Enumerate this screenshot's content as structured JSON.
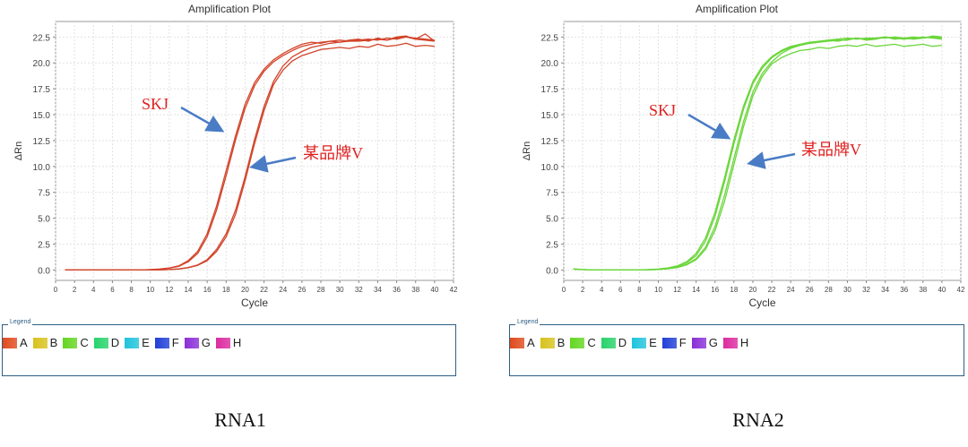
{
  "charts": [
    {
      "panel": "left",
      "caption": "RNA1",
      "legend_title": "Legend",
      "legend": [
        {
          "label": "A",
          "color": "#e04a1c"
        },
        {
          "label": "B",
          "color": "#d8c21c"
        },
        {
          "label": "C",
          "color": "#63d620"
        },
        {
          "label": "D",
          "color": "#27d36a"
        },
        {
          "label": "E",
          "color": "#1ec3dc"
        },
        {
          "label": "F",
          "color": "#1f3fd6"
        },
        {
          "label": "G",
          "color": "#8a2fd8"
        },
        {
          "label": "H",
          "color": "#dc2aa0"
        }
      ],
      "annotations": [
        {
          "text": "SKJ",
          "color": "#e02020"
        },
        {
          "text": "某品牌V",
          "color": "#e02020"
        }
      ]
    },
    {
      "panel": "right",
      "caption": "RNA2",
      "legend_title": "Legend",
      "legend": [
        {
          "label": "A",
          "color": "#e04a1c"
        },
        {
          "label": "B",
          "color": "#d8c21c"
        },
        {
          "label": "C",
          "color": "#63d620"
        },
        {
          "label": "D",
          "color": "#27d36a"
        },
        {
          "label": "E",
          "color": "#1ec3dc"
        },
        {
          "label": "F",
          "color": "#1f3fd6"
        },
        {
          "label": "G",
          "color": "#8a2fd8"
        },
        {
          "label": "H",
          "color": "#dc2aa0"
        }
      ],
      "annotations": [
        {
          "text": "SKJ",
          "color": "#e02020"
        },
        {
          "text": "某品牌V",
          "color": "#e02020"
        }
      ]
    }
  ],
  "chart_data": [
    {
      "type": "line",
      "title": "Amplification Plot",
      "xlabel": "Cycle",
      "ylabel": "ΔRn",
      "xlim": [
        0,
        42
      ],
      "ylim": [
        -1,
        24
      ],
      "xticks": [
        0,
        2,
        4,
        6,
        8,
        10,
        12,
        14,
        16,
        18,
        20,
        22,
        24,
        26,
        28,
        30,
        32,
        34,
        36,
        38,
        40,
        42
      ],
      "yticks": [
        0.0,
        2.5,
        5.0,
        7.5,
        10.0,
        12.5,
        15.0,
        17.5,
        20.0,
        22.5
      ],
      "ytick_labels": [
        "0.0",
        "2.5",
        "5.0",
        "7.5",
        "10.0",
        "12.5",
        "15.0",
        "17.5",
        "20.0",
        "22.5"
      ],
      "grid": true,
      "line_color": "#d2442a",
      "series": [
        {
          "values": [
            0,
            0,
            0,
            0,
            0,
            0,
            0,
            0,
            0,
            0.05,
            0.1,
            0.2,
            0.4,
            0.9,
            1.8,
            3.5,
            6.2,
            9.6,
            13.0,
            16.0,
            18.1,
            19.4,
            20.3,
            20.9,
            21.4,
            21.8,
            22.0,
            21.9,
            22.1,
            22.2,
            22.1,
            22.2,
            22.3,
            22.2,
            22.4,
            22.3,
            22.5,
            22.4,
            22.3,
            22.2
          ]
        },
        {
          "values": [
            0,
            0,
            0,
            0,
            0,
            0,
            0,
            0,
            0,
            0.04,
            0.08,
            0.18,
            0.35,
            0.8,
            1.6,
            3.2,
            5.8,
            9.1,
            12.6,
            15.6,
            17.8,
            19.2,
            20.1,
            20.7,
            21.2,
            21.6,
            21.8,
            22.0,
            22.1,
            22.0,
            22.2,
            22.3,
            22.1,
            22.4,
            22.2,
            22.5,
            22.6,
            22.3,
            22.2,
            22.1
          ]
        },
        {
          "values": [
            0,
            0,
            0,
            0,
            0,
            0,
            0,
            0,
            0,
            0,
            0.02,
            0.05,
            0.12,
            0.25,
            0.5,
            1.0,
            2.0,
            3.5,
            5.8,
            9.0,
            12.6,
            15.8,
            18.2,
            19.7,
            20.6,
            21.1,
            21.5,
            21.7,
            21.9,
            22.0,
            22.1,
            22.1,
            22.2,
            22.3,
            22.2,
            22.4,
            22.5,
            22.3,
            22.8,
            22.1
          ]
        },
        {
          "values": [
            0,
            0,
            0,
            0,
            0,
            0,
            0,
            0,
            0,
            0,
            0.02,
            0.05,
            0.1,
            0.22,
            0.45,
            0.9,
            1.8,
            3.2,
            5.4,
            8.6,
            12.2,
            15.4,
            17.9,
            19.3,
            20.2,
            20.7,
            21.0,
            21.3,
            21.4,
            21.5,
            21.4,
            21.6,
            21.5,
            21.8,
            21.6,
            21.7,
            21.9,
            21.6,
            21.7,
            21.6
          ]
        }
      ]
    },
    {
      "type": "line",
      "title": "Amplification Plot",
      "xlabel": "Cycle",
      "ylabel": "ΔRn",
      "xlim": [
        0,
        42
      ],
      "ylim": [
        -1,
        24
      ],
      "xticks": [
        0,
        2,
        4,
        6,
        8,
        10,
        12,
        14,
        16,
        18,
        20,
        22,
        24,
        26,
        28,
        30,
        32,
        34,
        36,
        38,
        40,
        42
      ],
      "yticks": [
        0.0,
        2.5,
        5.0,
        7.5,
        10.0,
        12.5,
        15.0,
        17.5,
        20.0,
        22.5
      ],
      "ytick_labels": [
        "0.0",
        "2.5",
        "5.0",
        "7.5",
        "10.0",
        "12.5",
        "15.0",
        "17.5",
        "20.0",
        "22.5"
      ],
      "grid": true,
      "line_color": "#6ad63a",
      "series": [
        {
          "values": [
            0.1,
            0.05,
            0,
            0,
            0,
            0,
            0,
            0,
            0.05,
            0.1,
            0.2,
            0.4,
            0.8,
            1.6,
            3.1,
            5.6,
            8.9,
            12.6,
            15.8,
            18.2,
            19.7,
            20.6,
            21.2,
            21.6,
            21.8,
            22.0,
            22.1,
            22.2,
            22.3,
            22.4,
            22.3,
            22.4,
            22.4,
            22.5,
            22.3,
            22.4,
            22.5,
            22.4,
            22.6,
            22.5
          ]
        },
        {
          "values": [
            0.1,
            0.05,
            0,
            0,
            0,
            0,
            0,
            0,
            0.04,
            0.08,
            0.18,
            0.35,
            0.7,
            1.4,
            2.8,
            5.2,
            8.5,
            12.2,
            15.5,
            18.0,
            19.5,
            20.5,
            21.1,
            21.5,
            21.7,
            21.9,
            22.0,
            22.2,
            22.1,
            22.3,
            22.4,
            22.2,
            22.3,
            22.5,
            22.4,
            22.3,
            22.4,
            22.5,
            22.4,
            22.3
          ]
        },
        {
          "values": [
            0.1,
            0.05,
            0,
            0,
            0,
            0,
            0,
            0,
            0.03,
            0.06,
            0.14,
            0.28,
            0.55,
            1.1,
            2.2,
            4.2,
            7.2,
            10.8,
            14.3,
            17.2,
            19.0,
            20.1,
            20.9,
            21.4,
            21.7,
            21.9,
            22.0,
            22.1,
            22.2,
            22.2,
            22.4,
            22.3,
            22.4,
            22.4,
            22.5,
            22.4,
            22.3,
            22.4,
            22.5,
            22.4
          ]
        },
        {
          "values": [
            0.1,
            0.05,
            0,
            0,
            0,
            0,
            0,
            0,
            0.02,
            0.05,
            0.12,
            0.24,
            0.5,
            1.0,
            2.0,
            3.8,
            6.6,
            10.2,
            13.8,
            16.8,
            18.7,
            19.9,
            20.5,
            20.9,
            21.2,
            21.3,
            21.5,
            21.4,
            21.6,
            21.7,
            21.6,
            21.8,
            21.6,
            21.7,
            21.8,
            21.6,
            21.7,
            21.8,
            21.6,
            21.7
          ]
        }
      ]
    }
  ]
}
